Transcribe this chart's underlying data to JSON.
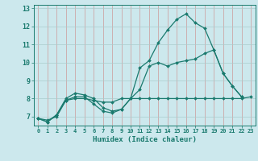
{
  "title": "",
  "xlabel": "Humidex (Indice chaleur)",
  "bg_color": "#cce8ed",
  "grid_color": "#aacccc",
  "line_color": "#1a7a6e",
  "xlim": [
    -0.5,
    23.5
  ],
  "ylim": [
    6.5,
    13.2
  ],
  "yticks": [
    7,
    8,
    9,
    10,
    11,
    12,
    13
  ],
  "xticks": [
    0,
    1,
    2,
    3,
    4,
    5,
    6,
    7,
    8,
    9,
    10,
    11,
    12,
    13,
    14,
    15,
    16,
    17,
    18,
    19,
    20,
    21,
    22,
    23
  ],
  "series1_x": [
    0,
    1,
    2,
    3,
    4,
    5,
    6,
    7,
    8,
    9,
    10,
    11,
    12,
    13,
    14,
    15,
    16,
    17,
    18,
    19,
    20,
    21,
    22
  ],
  "series1_y": [
    6.9,
    6.7,
    7.1,
    8.0,
    8.3,
    8.2,
    8.0,
    7.5,
    7.3,
    7.4,
    8.0,
    9.7,
    10.1,
    11.1,
    11.8,
    12.4,
    12.7,
    12.2,
    11.9,
    10.7,
    9.4,
    8.7,
    8.1
  ],
  "series2_x": [
    0,
    1,
    2,
    3,
    4,
    5,
    6,
    7,
    8,
    9,
    10,
    11,
    12,
    13,
    14,
    15,
    16,
    17,
    18,
    19,
    20,
    21,
    22
  ],
  "series2_y": [
    6.9,
    6.7,
    7.1,
    7.9,
    8.1,
    8.1,
    7.7,
    7.3,
    7.2,
    7.4,
    8.0,
    8.5,
    9.8,
    10.0,
    9.8,
    10.0,
    10.1,
    10.2,
    10.5,
    10.7,
    9.4,
    8.7,
    8.1
  ],
  "series3_x": [
    0,
    1,
    2,
    3,
    4,
    5,
    6,
    7,
    8,
    9,
    10,
    11,
    12,
    13,
    14,
    15,
    16,
    17,
    18,
    19,
    20,
    21,
    22,
    23
  ],
  "series3_y": [
    6.9,
    6.8,
    7.0,
    7.9,
    8.0,
    8.0,
    7.9,
    7.8,
    7.8,
    8.0,
    8.0,
    8.0,
    8.0,
    8.0,
    8.0,
    8.0,
    8.0,
    8.0,
    8.0,
    8.0,
    8.0,
    8.0,
    8.0,
    8.1
  ]
}
